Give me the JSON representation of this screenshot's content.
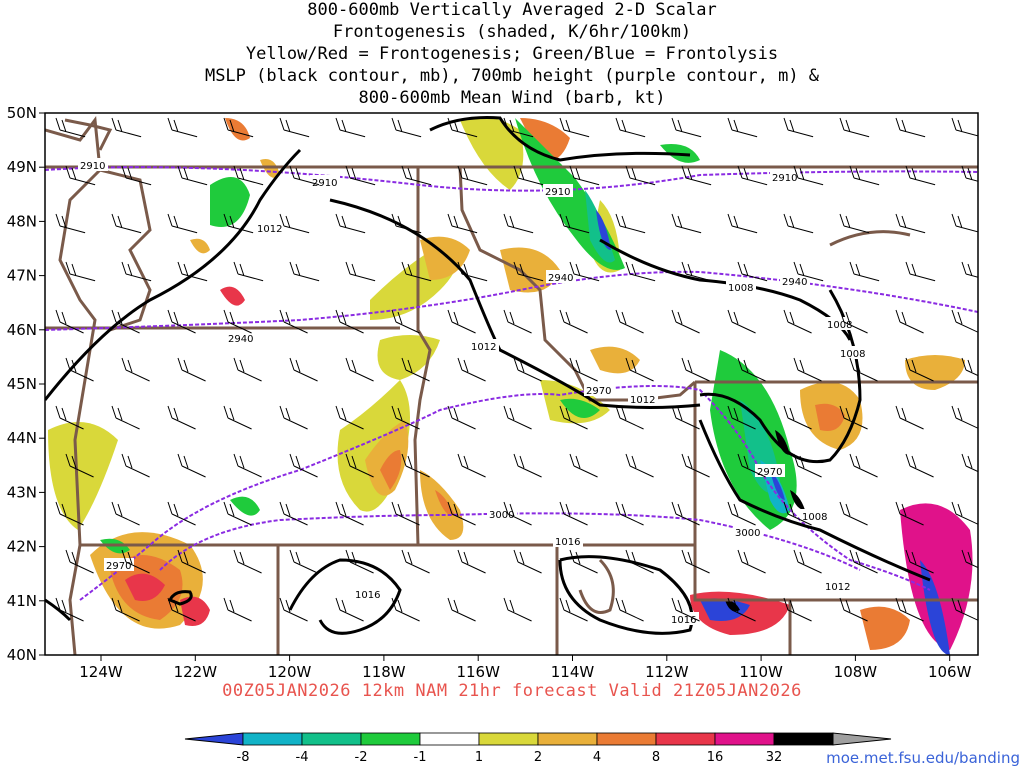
{
  "title_lines": [
    "800-600mb Vertically Averaged 2-D Scalar",
    "Frontogenesis (shaded, K/6hr/100km)",
    "Yellow/Red = Frontogenesis;  Green/Blue = Frontolysis",
    "MSLP (black contour, mb), 700mb height (purple contour, m) &",
    "800-600mb Mean Wind (barb, kt)"
  ],
  "footer": "00Z05JAN2026 12km NAM 21hr forecast Valid 21Z05JAN2026",
  "site": "moe.met.fsu.edu/banding",
  "lat_labels": [
    "50N",
    "49N",
    "48N",
    "47N",
    "46N",
    "45N",
    "44N",
    "43N",
    "42N",
    "41N",
    "40N"
  ],
  "lon_labels": [
    "124W",
    "122W",
    "120W",
    "118W",
    "116W",
    "114W",
    "112W",
    "110W",
    "108W",
    "106W"
  ],
  "colorbar": {
    "ticks": [
      "-8",
      "-4",
      "-2",
      "-1",
      "1",
      "2",
      "4",
      "8",
      "16",
      "32"
    ],
    "colors": [
      "#2b44d8",
      "#11b3c7",
      "#12c08a",
      "#1fcb3c",
      "#ffffff",
      "#d9d83a",
      "#e9b03a",
      "#ea7b34",
      "#e8364a",
      "#e0128a",
      "#000000",
      "#a0a0a0"
    ]
  },
  "pressure_labels": [
    "1012",
    "1012",
    "1012",
    "1008",
    "1008",
    "1008",
    "1008",
    "1012",
    "1016",
    "1016",
    "1016",
    "1012"
  ],
  "height_labels": [
    "2910",
    "2910",
    "2910",
    "2910",
    "2940",
    "2940",
    "2940",
    "2970",
    "2970",
    "2970",
    "3000",
    "3000"
  ],
  "colors": {
    "pressure": "#000000",
    "height": "#8a2be2",
    "border": "#7a5a4a",
    "footer": "#e8544e",
    "site": "#3a63d8"
  }
}
